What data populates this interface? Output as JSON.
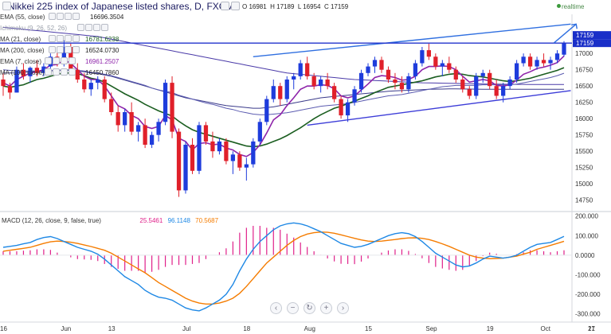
{
  "header": {
    "title": "Nikkei 225 index of Japanese listed shares, D, FXCM",
    "ohlc": {
      "o": "O 16981",
      "h": "H 17189",
      "l": "L 16954",
      "c": "C 17159"
    },
    "realtime": "realtime"
  },
  "indicators": [
    {
      "label": "EMA (55, close)",
      "value": "16696.3504",
      "color": "#333333"
    },
    {
      "label": "Ichimoku (9, 26, 52, 26)",
      "value": "",
      "color": "#333333"
    },
    {
      "label": "MA (21, close)",
      "value": "16781.6238",
      "color": "#1b5e20"
    },
    {
      "label": "MA (200, close)",
      "value": "16524.0730",
      "color": "#222222"
    },
    {
      "label": "EMA (7, close)",
      "value": "16961.2507",
      "color": "#8e24aa"
    },
    {
      "label": "MA (100, close)",
      "value": "16450.7860",
      "color": "#222222"
    }
  ],
  "macd_panel": {
    "label": "MACD (12, 26, close, 9, false, true)",
    "values": [
      "25.5461",
      "96.1148",
      "70.5687"
    ],
    "value_colors": [
      "#e0208a",
      "#1e88e5",
      "#f57c00"
    ]
  },
  "price_badges": [
    "17159",
    "17159"
  ],
  "chart_data": {
    "type": "candlestick",
    "price_axis": {
      "ticks": [
        17000,
        16750,
        16500,
        16250,
        16000,
        15750,
        15500,
        15250,
        15000,
        14750
      ],
      "range": [
        14600,
        17600
      ]
    },
    "macd_axis": {
      "ticks": [
        "200.000",
        "100.000",
        "0.0000",
        "-100.000",
        "-200.000",
        "-300.000"
      ],
      "range": [
        -330,
        215
      ]
    },
    "x_labels": [
      "16",
      "Jun",
      "13",
      "Jul",
      "18",
      "Aug",
      "15",
      "Sep",
      "19",
      "Oct",
      "17",
      "21"
    ],
    "candles": [
      [
        16600,
        16700,
        16350,
        16500
      ],
      [
        16500,
        16550,
        16300,
        16400
      ],
      [
        16400,
        16800,
        16400,
        16750
      ],
      [
        16750,
        16850,
        16600,
        16650
      ],
      [
        16650,
        16800,
        16550,
        16780
      ],
      [
        16780,
        16900,
        16650,
        16700
      ],
      [
        16700,
        16850,
        16650,
        16800
      ],
      [
        16800,
        17000,
        16750,
        16950
      ],
      [
        16950,
        17050,
        16800,
        16850
      ],
      [
        16850,
        17200,
        16800,
        17100
      ],
      [
        17100,
        17150,
        16700,
        16750
      ],
      [
        16750,
        16850,
        16550,
        16600
      ],
      [
        16600,
        16700,
        16400,
        16450
      ],
      [
        16450,
        16600,
        16350,
        16550
      ],
      [
        16550,
        16650,
        16450,
        16600
      ],
      [
        16600,
        16650,
        16250,
        16300
      ],
      [
        16300,
        16400,
        16050,
        16100
      ],
      [
        16100,
        16200,
        15800,
        15900
      ],
      [
        15900,
        16150,
        15800,
        16100
      ],
      [
        16100,
        16250,
        15750,
        15800
      ],
      [
        15800,
        15950,
        15650,
        15900
      ],
      [
        15900,
        16000,
        15550,
        15600
      ],
      [
        15600,
        15800,
        15550,
        15750
      ],
      [
        15750,
        16000,
        15650,
        15950
      ],
      [
        15950,
        16600,
        15900,
        16550
      ],
      [
        16550,
        16650,
        15700,
        15800
      ],
      [
        15800,
        15850,
        14800,
        14900
      ],
      [
        14900,
        15650,
        14850,
        15600
      ],
      [
        15600,
        15700,
        15150,
        15200
      ],
      [
        15200,
        15950,
        15150,
        15900
      ],
      [
        15900,
        15950,
        15600,
        15650
      ],
      [
        15650,
        15800,
        15400,
        15500
      ],
      [
        15500,
        15700,
        15450,
        15650
      ],
      [
        15650,
        15700,
        15300,
        15350
      ],
      [
        15350,
        15500,
        15150,
        15450
      ],
      [
        15450,
        15500,
        15200,
        15250
      ],
      [
        15250,
        15400,
        15050,
        15300
      ],
      [
        15300,
        15700,
        15250,
        15650
      ],
      [
        15650,
        16000,
        15600,
        15950
      ],
      [
        15950,
        16350,
        15900,
        16300
      ],
      [
        16300,
        16600,
        16250,
        16500
      ],
      [
        16500,
        16550,
        16200,
        16300
      ],
      [
        16300,
        16650,
        16250,
        16600
      ],
      [
        16600,
        16700,
        16450,
        16650
      ],
      [
        16650,
        16900,
        16600,
        16850
      ],
      [
        16850,
        16950,
        16600,
        16650
      ],
      [
        16650,
        16700,
        16450,
        16500
      ],
      [
        16500,
        16650,
        16400,
        16600
      ],
      [
        16600,
        16700,
        16450,
        16500
      ],
      [
        16500,
        16550,
        16250,
        16300
      ],
      [
        16300,
        16350,
        16000,
        16050
      ],
      [
        16050,
        16300,
        15950,
        16250
      ],
      [
        16250,
        16500,
        16200,
        16450
      ],
      [
        16450,
        16750,
        16400,
        16700
      ],
      [
        16700,
        16850,
        16650,
        16800
      ],
      [
        16800,
        16950,
        16700,
        16900
      ],
      [
        16900,
        16950,
        16700,
        16750
      ],
      [
        16750,
        16800,
        16550,
        16600
      ],
      [
        16600,
        16700,
        16450,
        16550
      ],
      [
        16550,
        16650,
        16400,
        16450
      ],
      [
        16450,
        16700,
        16400,
        16650
      ],
      [
        16650,
        16900,
        16600,
        16850
      ],
      [
        16850,
        17100,
        16800,
        17050
      ],
      [
        17050,
        17150,
        16900,
        16950
      ],
      [
        16950,
        17000,
        16750,
        16800
      ],
      [
        16800,
        16900,
        16650,
        16850
      ],
      [
        16850,
        16950,
        16700,
        16750
      ],
      [
        16750,
        16800,
        16550,
        16600
      ],
      [
        16600,
        16650,
        16400,
        16450
      ],
      [
        16450,
        16500,
        16300,
        16350
      ],
      [
        16350,
        16700,
        16300,
        16650
      ],
      [
        16650,
        16750,
        16550,
        16700
      ],
      [
        16700,
        16750,
        16450,
        16500
      ],
      [
        16500,
        16600,
        16300,
        16350
      ],
      [
        16350,
        16550,
        16250,
        16500
      ],
      [
        16500,
        16650,
        16450,
        16600
      ],
      [
        16600,
        16900,
        16550,
        16850
      ],
      [
        16850,
        17000,
        16800,
        16950
      ],
      [
        16950,
        17000,
        16750,
        16800
      ],
      [
        16800,
        16950,
        16750,
        16900
      ],
      [
        16900,
        17000,
        16800,
        16850
      ],
      [
        16850,
        16950,
        16750,
        16900
      ],
      [
        16900,
        17050,
        16850,
        17000
      ],
      [
        16981,
        17189,
        16954,
        17159
      ]
    ],
    "overlays": {
      "ema7": [
        16550,
        16500,
        16600,
        16650,
        16700,
        16720,
        16750,
        16820,
        16830,
        16900,
        16850,
        16750,
        16650,
        16600,
        16600,
        16500,
        16350,
        16200,
        16150,
        16050,
        16000,
        15880,
        15850,
        15880,
        16050,
        15980,
        15700,
        15650,
        15520,
        15620,
        15630,
        15600,
        15610,
        15550,
        15520,
        15450,
        15420,
        15480,
        15600,
        15780,
        15980,
        16060,
        16200,
        16320,
        16450,
        16500,
        16500,
        16520,
        16510,
        16460,
        16350,
        16320,
        16350,
        16440,
        16530,
        16630,
        16660,
        16650,
        16630,
        16590,
        16600,
        16650,
        16750,
        16800,
        16800,
        16810,
        16800,
        16750,
        16650,
        16560,
        16580,
        16600,
        16580,
        16510,
        16500,
        16520,
        16590,
        16680,
        16720,
        16770,
        16790,
        16820,
        16860,
        16961
      ],
      "ma21": [
        16500,
        16480,
        16500,
        16520,
        16560,
        16600,
        16620,
        16650,
        16680,
        16700,
        16700,
        16690,
        16660,
        16620,
        16600,
        16560,
        16500,
        16440,
        16380,
        16330,
        16280,
        16220,
        16170,
        16120,
        16080,
        16040,
        15960,
        15890,
        15830,
        15790,
        15760,
        15730,
        15700,
        15670,
        15640,
        15610,
        15580,
        15570,
        15580,
        15610,
        15650,
        15690,
        15740,
        15800,
        15860,
        15930,
        16000,
        16060,
        16110,
        16160,
        16190,
        16230,
        16270,
        16310,
        16350,
        16400,
        16440,
        16480,
        16500,
        16520,
        16540,
        16560,
        16580,
        16610,
        16640,
        16660,
        16680,
        16690,
        16680,
        16660,
        16650,
        16640,
        16620,
        16600,
        16580,
        16570,
        16580,
        16600,
        16620,
        16650,
        16680,
        16710,
        16740,
        16782
      ],
      "ema55": [
        16750,
        16740,
        16730,
        16730,
        16730,
        16730,
        16730,
        16740,
        16740,
        16750,
        16750,
        16740,
        16730,
        16710,
        16700,
        16680,
        16660,
        16630,
        16600,
        16570,
        16540,
        16510,
        16470,
        16440,
        16420,
        16400,
        16360,
        16330,
        16300,
        16270,
        16240,
        16220,
        16190,
        16160,
        16140,
        16110,
        16090,
        16070,
        16060,
        16060,
        16070,
        16080,
        16090,
        16110,
        16130,
        16150,
        16170,
        16190,
        16200,
        16210,
        16220,
        16230,
        16250,
        16270,
        16290,
        16310,
        16330,
        16350,
        16360,
        16370,
        16390,
        16410,
        16430,
        16450,
        16470,
        16490,
        16500,
        16510,
        16510,
        16510,
        16510,
        16520,
        16520,
        16520,
        16520,
        16520,
        16530,
        16550,
        16570,
        16590,
        16610,
        16630,
        16660,
        16696
      ],
      "ma200": [
        17400,
        17390,
        17380,
        17370,
        17360,
        17350,
        17340,
        17330,
        17320,
        17310,
        17300,
        17290,
        17280,
        17270,
        17260,
        17240,
        17220,
        17200,
        17180,
        17160,
        17140,
        17120,
        17100,
        17080,
        17060,
        17040,
        17020,
        17000,
        16980,
        16960,
        16940,
        16920,
        16900,
        16880,
        16860,
        16840,
        16820,
        16800,
        16780,
        16760,
        16740,
        16720,
        16700,
        16690,
        16680,
        16670,
        16660,
        16650,
        16640,
        16630,
        16620,
        16610,
        16600,
        16595,
        16590,
        16585,
        16580,
        16575,
        16570,
        16565,
        16560,
        16555,
        16550,
        16548,
        16546,
        16544,
        16542,
        16540,
        16538,
        16536,
        16534,
        16532,
        16530,
        16529,
        16528,
        16527,
        16526,
        16526,
        16525,
        16525,
        16524,
        16524,
        16524,
        16524
      ],
      "ma100": [
        16700,
        16700,
        16700,
        16710,
        16720,
        16720,
        16730,
        16730,
        16740,
        16740,
        16740,
        16730,
        16720,
        16700,
        16690,
        16670,
        16650,
        16620,
        16590,
        16560,
        16530,
        16500,
        16470,
        16440,
        16410,
        16380,
        16350,
        16320,
        16300,
        16280,
        16260,
        16240,
        16220,
        16200,
        16190,
        16180,
        16170,
        16160,
        16160,
        16170,
        16180,
        16200,
        16220,
        16240,
        16260,
        16280,
        16300,
        16320,
        16330,
        16340,
        16350,
        16360,
        16370,
        16380,
        16390,
        16400,
        16410,
        16420,
        16425,
        16430,
        16435,
        16440,
        16445,
        16450,
        16452,
        16454,
        16456,
        16456,
        16455,
        16454,
        16452,
        16450,
        16450,
        16450,
        16450,
        16450,
        16450,
        16450,
        16450,
        16450,
        16450,
        16451,
        16451,
        16451
      ]
    },
    "trendlines": [
      {
        "name": "upper",
        "from": [
          37,
          16950
        ],
        "to": [
          84,
          17450
        ],
        "color": "#2f6fe0"
      },
      {
        "name": "lower",
        "from": [
          45,
          15900
        ],
        "to": [
          84,
          16430
        ],
        "color": "#3d3dd8"
      }
    ],
    "hline": {
      "y": 17159,
      "color": "#2233cc"
    },
    "arrow": {
      "from": [
        81.5,
        17160
      ],
      "to": [
        84.8,
        17450
      ]
    },
    "macd": {
      "macd": [
        40,
        45,
        50,
        58,
        65,
        80,
        90,
        95,
        85,
        70,
        55,
        40,
        30,
        20,
        5,
        -20,
        -50,
        -80,
        -110,
        -130,
        -150,
        -180,
        -200,
        -215,
        -220,
        -230,
        -250,
        -270,
        -280,
        -285,
        -270,
        -250,
        -230,
        -200,
        -150,
        -80,
        -20,
        30,
        70,
        100,
        130,
        150,
        160,
        165,
        160,
        150,
        135,
        120,
        100,
        80,
        60,
        50,
        40,
        45,
        55,
        70,
        85,
        100,
        110,
        115,
        110,
        95,
        70,
        40,
        10,
        -10,
        -30,
        -50,
        -60,
        -55,
        -40,
        -20,
        -5,
        -10,
        -15,
        -10,
        0,
        20,
        40,
        55,
        60,
        65,
        80,
        96
      ],
      "signal": [
        20,
        25,
        30,
        35,
        40,
        50,
        60,
        68,
        72,
        70,
        66,
        60,
        52,
        44,
        35,
        25,
        10,
        -10,
        -30,
        -50,
        -70,
        -90,
        -115,
        -140,
        -160,
        -180,
        -200,
        -220,
        -235,
        -245,
        -250,
        -250,
        -245,
        -235,
        -220,
        -195,
        -160,
        -120,
        -80,
        -40,
        -10,
        20,
        50,
        75,
        95,
        108,
        115,
        118,
        117,
        112,
        104,
        95,
        86,
        78,
        72,
        70,
        72,
        76,
        80,
        85,
        88,
        89,
        86,
        80,
        70,
        58,
        45,
        30,
        15,
        0,
        -10,
        -15,
        -18,
        -17,
        -15,
        -10,
        -5,
        5,
        15,
        30,
        40,
        50,
        60,
        71
      ],
      "hist_scale": 1.0
    }
  }
}
